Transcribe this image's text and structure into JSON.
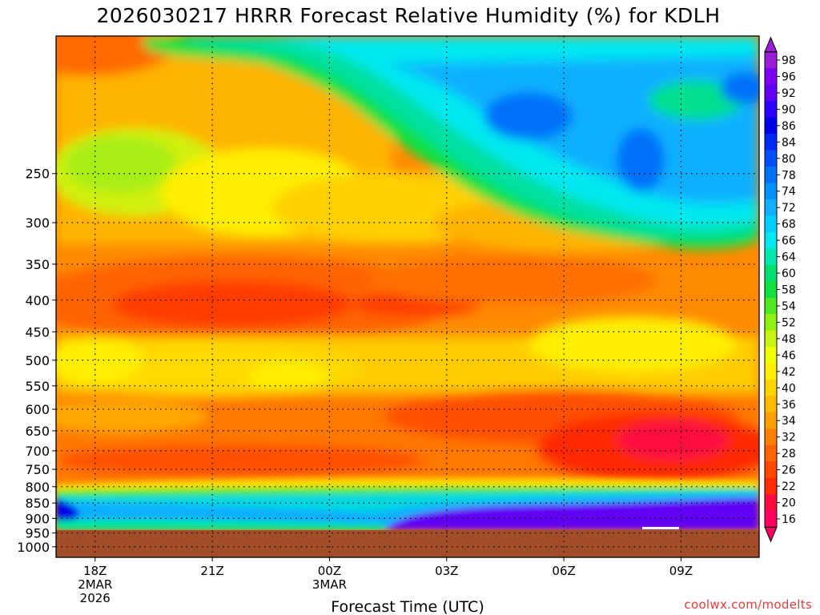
{
  "chart_data": {
    "type": "heatmap",
    "title": "2026030217 HRRR Forecast Relative Humidity (%) for KDLH",
    "xlabel": "Forecast Time (UTC)",
    "ylabel": "",
    "y_ticks": [
      "250",
      "300",
      "350",
      "400",
      "450",
      "500",
      "550",
      "600",
      "650",
      "700",
      "750",
      "800",
      "850",
      "900",
      "950",
      "1000"
    ],
    "y_values": [
      250,
      300,
      350,
      400,
      450,
      500,
      550,
      600,
      650,
      700,
      750,
      800,
      850,
      900,
      950,
      1000
    ],
    "ylim": [
      150,
      1040
    ],
    "y_scale": "log",
    "x_ticks": [
      {
        "hour": 18,
        "line1": "18Z",
        "line2": "2MAR",
        "line3": "2026"
      },
      {
        "hour": 21,
        "line1": "21Z",
        "line2": "",
        "line3": ""
      },
      {
        "hour": 24,
        "line1": "00Z",
        "line2": "3MAR",
        "line3": ""
      },
      {
        "hour": 27,
        "line1": "03Z",
        "line2": "",
        "line3": ""
      },
      {
        "hour": 30,
        "line1": "06Z",
        "line2": "",
        "line3": ""
      },
      {
        "hour": 33,
        "line1": "09Z",
        "line2": "",
        "line3": ""
      }
    ],
    "xlim": [
      17,
      35
    ],
    "colorbar": {
      "labels": [
        "98",
        "96",
        "92",
        "90",
        "86",
        "84",
        "80",
        "78",
        "74",
        "72",
        "68",
        "66",
        "64",
        "60",
        "58",
        "54",
        "52",
        "48",
        "46",
        "42",
        "40",
        "36",
        "34",
        "32",
        "28",
        "26",
        "22",
        "20",
        "16"
      ],
      "colors": [
        "#9a1fd6",
        "#7d00f0",
        "#6100f5",
        "#2a00ff",
        "#0000e8",
        "#0028f5",
        "#0050f8",
        "#0070fa",
        "#0090ff",
        "#10b0ff",
        "#00d0ff",
        "#00e8f0",
        "#00e8b0",
        "#00e070",
        "#10e040",
        "#50e820",
        "#90f010",
        "#c8f510",
        "#f0ff00",
        "#ffee00",
        "#ffd400",
        "#ffbb00",
        "#ffa000",
        "#ff8000",
        "#ff6400",
        "#ff4800",
        "#ff2c00",
        "#ff0a40",
        "#ff0060"
      ],
      "arrows": true
    },
    "ground_color": "#a14d2a",
    "ground_from_pressure": 965,
    "grid": "dotted",
    "value_min": 16,
    "value_max": 98
  },
  "credit": "coolwx.com/modelts"
}
